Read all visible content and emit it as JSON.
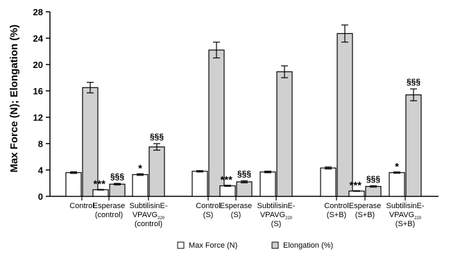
{
  "chart_data": {
    "type": "bar",
    "ylabel": "Max Force (N); Elongation (%)",
    "xlabel": "",
    "ylim": [
      0,
      28
    ],
    "yticks": [
      0,
      4,
      8,
      12,
      16,
      20,
      24,
      28
    ],
    "grid": false,
    "legend_position": "bottom",
    "groups": [
      {
        "lines": [
          "Control"
        ],
        "sub": null,
        "max_force": 3.6,
        "max_force_err": 0.12,
        "elongation": 16.5,
        "elongation_err": 0.8,
        "max_force_mark": "",
        "elongation_mark": ""
      },
      {
        "lines": [
          "Esperase",
          "(control)"
        ],
        "sub": null,
        "max_force": 1.0,
        "max_force_err": 0.05,
        "elongation": 1.85,
        "elongation_err": 0.12,
        "max_force_mark": "***",
        "elongation_mark": "§§§"
      },
      {
        "lines": [
          "SubtilisinE-",
          "VPAVG",
          "(control)"
        ],
        "sub": "220",
        "max_force": 3.3,
        "max_force_err": 0.12,
        "elongation": 7.5,
        "elongation_err": 0.5,
        "max_force_mark": "*",
        "elongation_mark": "§§§"
      },
      {
        "lines": [
          "Control",
          "(S)"
        ],
        "sub": null,
        "max_force": 3.8,
        "max_force_err": 0.1,
        "elongation": 22.2,
        "elongation_err": 1.2,
        "max_force_mark": "",
        "elongation_mark": ""
      },
      {
        "lines": [
          "Esperase",
          "(S)"
        ],
        "sub": null,
        "max_force": 1.6,
        "max_force_err": 0.08,
        "elongation": 2.2,
        "elongation_err": 0.15,
        "max_force_mark": "***",
        "elongation_mark": "§§§"
      },
      {
        "lines": [
          "SubtilisinE-",
          "VPAVG",
          "(S)"
        ],
        "sub": "220",
        "max_force": 3.7,
        "max_force_err": 0.12,
        "elongation": 18.9,
        "elongation_err": 0.9,
        "max_force_mark": "",
        "elongation_mark": ""
      },
      {
        "lines": [
          "Control",
          "(S+B)"
        ],
        "sub": null,
        "max_force": 4.3,
        "max_force_err": 0.15,
        "elongation": 24.7,
        "elongation_err": 1.3,
        "max_force_mark": "",
        "elongation_mark": ""
      },
      {
        "lines": [
          "Esperase",
          "(S+B)"
        ],
        "sub": null,
        "max_force": 0.8,
        "max_force_err": 0.05,
        "elongation": 1.5,
        "elongation_err": 0.1,
        "max_force_mark": "***",
        "elongation_mark": "§§§"
      },
      {
        "lines": [
          "SubtilisinE-",
          "VPAVG",
          "(S+B)"
        ],
        "sub": "220",
        "max_force": 3.6,
        "max_force_err": 0.1,
        "elongation": 15.4,
        "elongation_err": 0.9,
        "max_force_mark": "*",
        "elongation_mark": "§§§"
      }
    ],
    "series": [
      {
        "name": "Max Force (N)",
        "key": "max_force",
        "color": "#ffffff"
      },
      {
        "name": "Elongation (%)",
        "key": "elongation",
        "color": "#d0d0d0"
      }
    ]
  }
}
